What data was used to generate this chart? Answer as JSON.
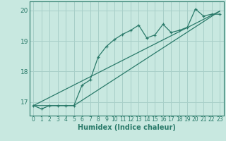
{
  "xlabel": "Humidex (Indice chaleur)",
  "background_color": "#c8e8e0",
  "grid_color": "#a8cfc8",
  "line_color": "#2a7a6a",
  "xlim": [
    -0.5,
    23.5
  ],
  "ylim": [
    16.55,
    20.3
  ],
  "yticks": [
    17,
    18,
    19,
    20
  ],
  "xticks": [
    0,
    1,
    2,
    3,
    4,
    5,
    6,
    7,
    8,
    9,
    10,
    11,
    12,
    13,
    14,
    15,
    16,
    17,
    18,
    19,
    20,
    21,
    22,
    23
  ],
  "curve1_x": [
    0,
    1,
    2,
    3,
    4,
    5,
    6,
    7,
    8,
    9,
    10,
    11,
    12,
    13,
    14,
    15,
    16,
    17,
    18,
    19,
    20,
    21,
    22,
    23
  ],
  "curve1_y": [
    16.88,
    16.77,
    16.88,
    16.88,
    16.88,
    16.88,
    17.55,
    17.72,
    18.48,
    18.82,
    19.05,
    19.22,
    19.35,
    19.52,
    19.1,
    19.2,
    19.55,
    19.28,
    19.35,
    19.45,
    20.05,
    19.82,
    19.88,
    19.88
  ],
  "curve2_x": [
    0,
    5,
    23
  ],
  "curve2_y": [
    16.88,
    16.88,
    19.98
  ],
  "curve3_x": [
    0,
    23
  ],
  "curve3_y": [
    16.88,
    19.98
  ]
}
